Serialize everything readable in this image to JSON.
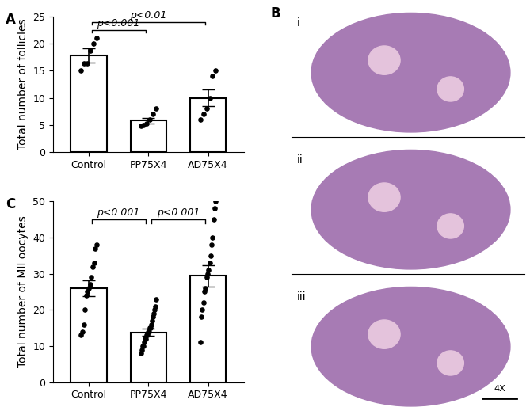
{
  "chart_data": [
    {
      "type": "bar",
      "title": "A",
      "y_label": "Total number of follicles",
      "categories": [
        "Control",
        "PP75X4",
        "AD75X4"
      ],
      "values": [
        17.8,
        5.8,
        10.0
      ],
      "errors": [
        1.3,
        0.5,
        1.5
      ],
      "points": [
        [
          21,
          20,
          18.7,
          16.3,
          16.3,
          15
        ],
        [
          8,
          7,
          6,
          5.2,
          5,
          4.8
        ],
        [
          15,
          14,
          10,
          8,
          7,
          6
        ]
      ],
      "color": "#ffffff",
      "ylim": [
        0,
        25
      ],
      "yticks": [
        0,
        5,
        10,
        15,
        20,
        25
      ],
      "annotations": [
        {
          "from": "Control",
          "to": "PP75X4",
          "label": "p<0.001"
        },
        {
          "from": "Control",
          "to": "AD75X4",
          "label": "p<0.01"
        }
      ]
    },
    {
      "type": "bar",
      "title": "C",
      "y_label": "Total number of MII oocytes",
      "categories": [
        "Control",
        "PP75X4",
        "AD75X4"
      ],
      "values": [
        26.0,
        13.8,
        29.4
      ],
      "errors": [
        2.2,
        1.0,
        3.0
      ],
      "points": [
        [
          38,
          37,
          33,
          32,
          29,
          27,
          26,
          25,
          24,
          20,
          16,
          14,
          13
        ],
        [
          23,
          21,
          20,
          19,
          18,
          17,
          16,
          15,
          15,
          14,
          14,
          13,
          13,
          12,
          12,
          11,
          10,
          10,
          9,
          8
        ],
        [
          50,
          48,
          45,
          40,
          38,
          35,
          33,
          31,
          30,
          29,
          26,
          25,
          22,
          20,
          18,
          11
        ]
      ],
      "color": "#ffffff",
      "ylim": [
        0,
        50
      ],
      "yticks": [
        0,
        10,
        20,
        30,
        40,
        50
      ],
      "annotations": [
        {
          "from": "Control",
          "to": "PP75X4",
          "label": "p<0.001"
        },
        {
          "from": "PP75X4",
          "to": "AD75X4",
          "label": "p<0.001"
        }
      ]
    }
  ],
  "panel_B": {
    "label": "B",
    "images": [
      "i",
      "ii",
      "iii"
    ],
    "scale_bar": "4X"
  }
}
